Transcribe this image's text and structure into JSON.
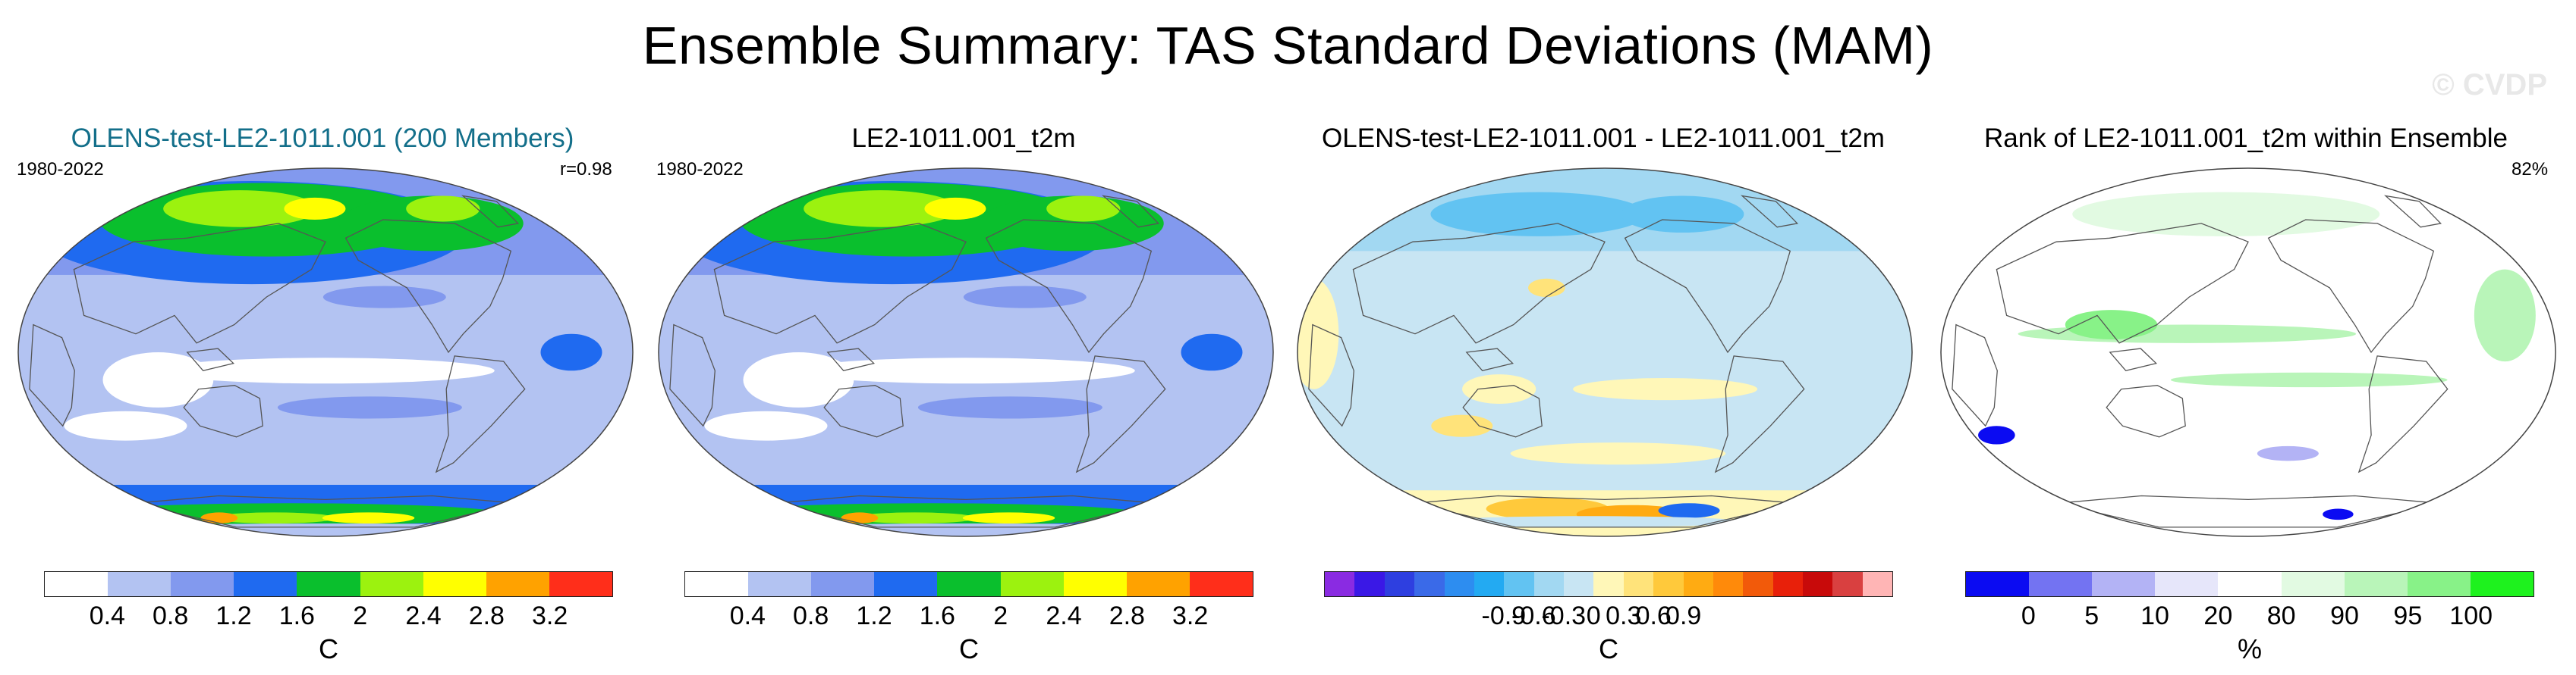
{
  "figure": {
    "title": "Ensemble Summary: TAS Standard Deviations (MAM)",
    "watermark": "© CVDP"
  },
  "panels": [
    {
      "title": "OLENS-test-LE2-1011.001 (200 Members)",
      "title_color": "#136f8a",
      "left_label": "1980-2022",
      "right_label": "r=0.98",
      "map_style": "stddev",
      "colorbar": {
        "colors": [
          "#ffffff",
          "#b3c3f2",
          "#8299ee",
          "#1f6af0",
          "#0abf2d",
          "#9cf20f",
          "#ffff00",
          "#ffa200",
          "#ff2e1a"
        ],
        "ticks": [
          "0.4",
          "0.8",
          "1.2",
          "1.6",
          "2",
          "2.4",
          "2.8",
          "3.2"
        ],
        "unit": "C"
      }
    },
    {
      "title": "LE2-1011.001_t2m",
      "title_color": "#000000",
      "left_label": "1980-2022",
      "right_label": "",
      "map_style": "stddev",
      "colorbar": {
        "colors": [
          "#ffffff",
          "#b3c3f2",
          "#8299ee",
          "#1f6af0",
          "#0abf2d",
          "#9cf20f",
          "#ffff00",
          "#ffa200",
          "#ff2e1a"
        ],
        "ticks": [
          "0.4",
          "0.8",
          "1.2",
          "1.6",
          "2",
          "2.4",
          "2.8",
          "3.2"
        ],
        "unit": "C"
      }
    },
    {
      "title": "OLENS-test-LE2-1011.001 - LE2-1011.001_t2m",
      "title_color": "#000000",
      "left_label": "",
      "right_label": "",
      "map_style": "diff",
      "colorbar": {
        "colors": [
          "#8a2be2",
          "#3a18e6",
          "#2e3fe0",
          "#3a6ae8",
          "#2d8df0",
          "#23aaf2",
          "#62c3f2",
          "#a2d8f2",
          "#c8e5f3",
          "#fff7b8",
          "#ffe37a",
          "#ffc93b",
          "#ffab12",
          "#ff8a0a",
          "#f25a0a",
          "#e8200a",
          "#c80a0a",
          "#d94040",
          "#ffb5b5"
        ],
        "ticks": [
          "-0.9",
          "-0.6",
          "-0.3",
          "0",
          "0.3",
          "0.6",
          "0.9"
        ],
        "unit": "C"
      }
    },
    {
      "title": "Rank of LE2-1011.001_t2m within Ensemble",
      "title_color": "#000000",
      "left_label": "",
      "right_label": "82%",
      "map_style": "rank",
      "colorbar": {
        "colors": [
          "#0b0bf2",
          "#7373f2",
          "#b3b3f5",
          "#e6e6fa",
          "#ffffff",
          "#e2fae2",
          "#b9f5b9",
          "#88f288",
          "#1ef21e"
        ],
        "ticks": [
          "0",
          "5",
          "10",
          "20",
          "80",
          "90",
          "95",
          "100"
        ],
        "unit": "%"
      }
    }
  ]
}
